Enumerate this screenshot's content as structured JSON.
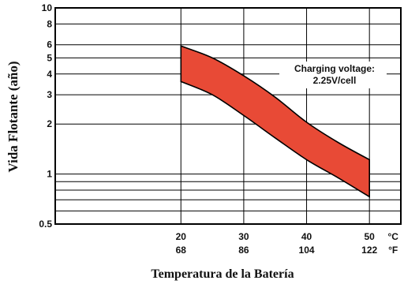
{
  "chart_data": {
    "type": "area",
    "x_axis": {
      "label": "Temperatura de la Batería",
      "ticks_c": [
        "20",
        "30",
        "40",
        "50"
      ],
      "ticks_f": [
        "68",
        "86",
        "104",
        "122"
      ],
      "unit_c": "°C",
      "unit_f": "°F",
      "xlim_c": [
        0,
        55
      ]
    },
    "y_axis": {
      "label": "Vida Flotante (año)",
      "scale": "log",
      "ylim": [
        0.5,
        10
      ],
      "tick_labels": [
        "0.5",
        "1",
        "2",
        "3",
        "4",
        "5",
        "6",
        "8",
        "10"
      ],
      "tick_values": [
        0.5,
        1,
        2,
        3,
        4,
        5,
        6,
        8,
        10
      ]
    },
    "minor_gridlines": [
      0.6,
      0.7,
      0.8,
      0.9
    ],
    "band": {
      "color": "#e84a36",
      "upper": [
        [
          20,
          5.9
        ],
        [
          25,
          5.0
        ],
        [
          30,
          3.9
        ],
        [
          35,
          2.9
        ],
        [
          40,
          2.05
        ],
        [
          45,
          1.55
        ],
        [
          50,
          1.22
        ]
      ],
      "lower": [
        [
          20,
          3.6
        ],
        [
          25,
          3.0
        ],
        [
          30,
          2.25
        ],
        [
          35,
          1.65
        ],
        [
          40,
          1.22
        ],
        [
          45,
          0.95
        ],
        [
          50,
          0.73
        ]
      ]
    },
    "annotation": [
      "Charging voltage:",
      "2.25V/cell"
    ],
    "grid": true
  }
}
